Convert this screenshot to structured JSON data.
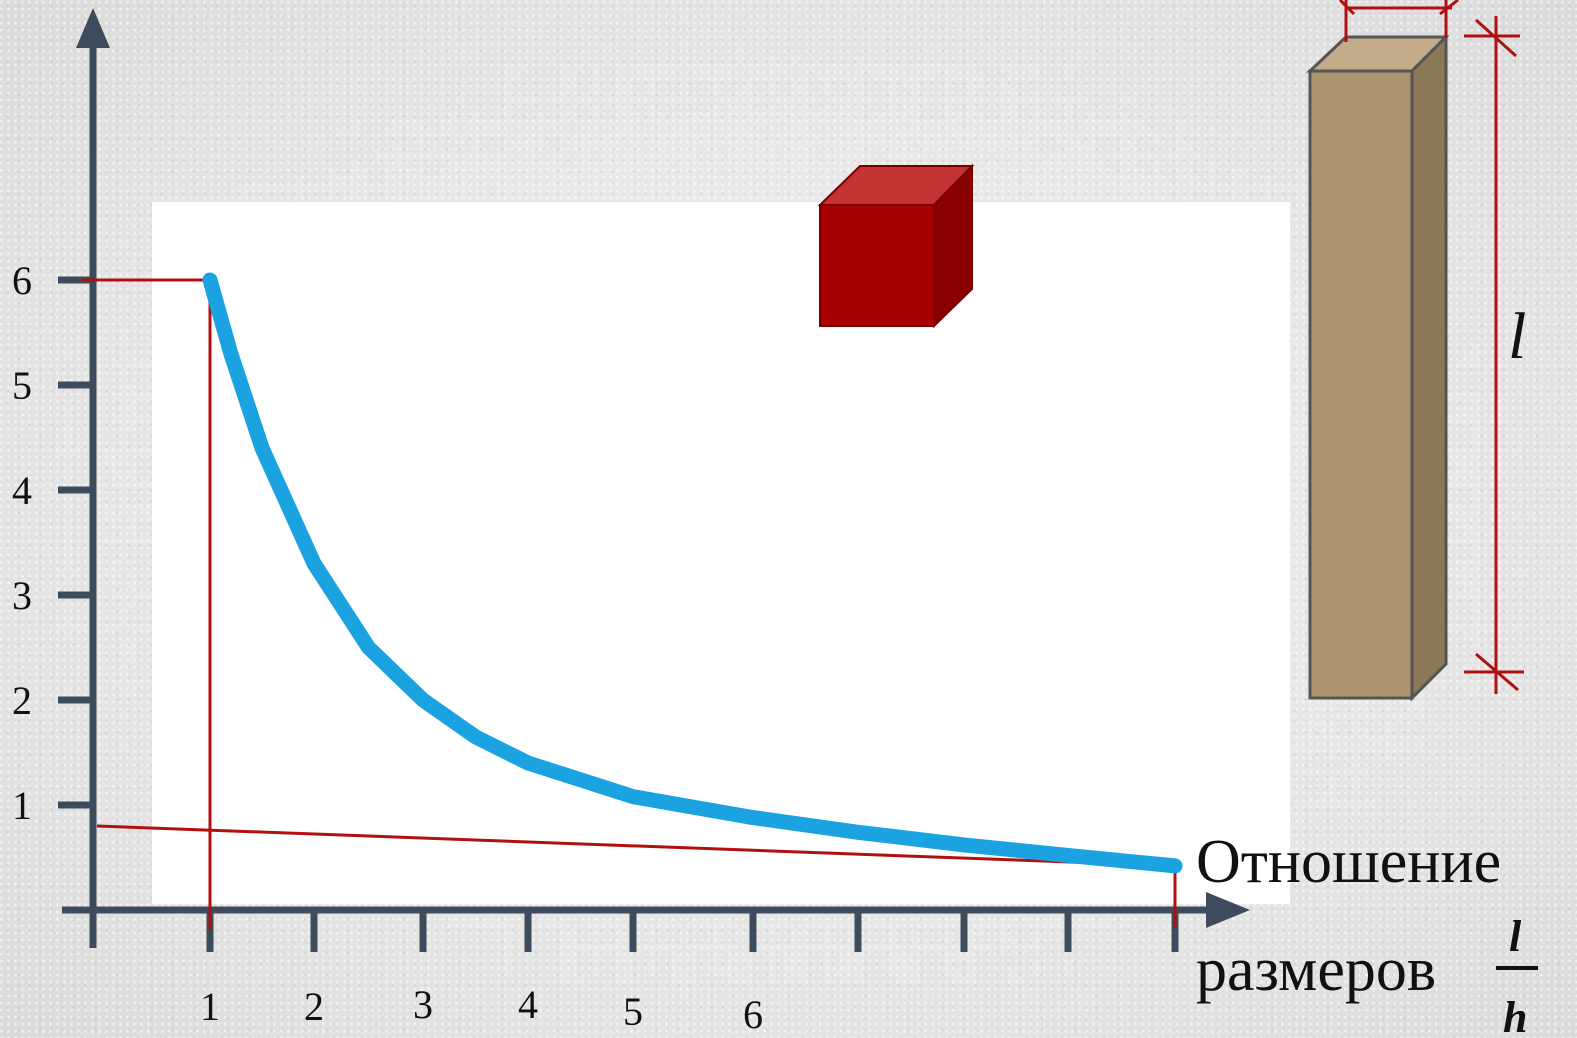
{
  "chart_data": {
    "type": "line",
    "x_ticks": [
      "1",
      "2",
      "3",
      "4",
      "5",
      "6"
    ],
    "y_ticks": [
      "1",
      "2",
      "3",
      "4",
      "5",
      "6"
    ],
    "xlabel_line1": "Отношение",
    "xlabel_line2": "размеров",
    "xlabel_fraction_numerator": "l",
    "xlabel_fraction_denominator": "h",
    "dimension_label": "l",
    "series": [
      {
        "color": "#1aa3e0",
        "x": [
          1.0,
          1.2,
          1.5,
          2.0,
          2.5,
          3.0,
          3.5,
          4.0,
          5.0,
          6.0,
          7.0,
          8.0,
          9.0,
          10.0
        ],
        "y": [
          6.0,
          5.3,
          4.4,
          3.3,
          2.5,
          2.0,
          1.65,
          1.4,
          1.08,
          0.88,
          0.74,
          0.62,
          0.52,
          0.42
        ]
      }
    ],
    "marker_color": "#b01010",
    "colors": {
      "axis": "#3d4c5c",
      "plot_background": "#ffffff",
      "cube_front": "#a80000",
      "cube_top": "#c33333",
      "cube_side": "#8a0000",
      "bar_front": "#ad9470",
      "bar_top": "#c2ac8a",
      "bar_side": "#8a7856",
      "bar_outline": "#555555"
    }
  }
}
